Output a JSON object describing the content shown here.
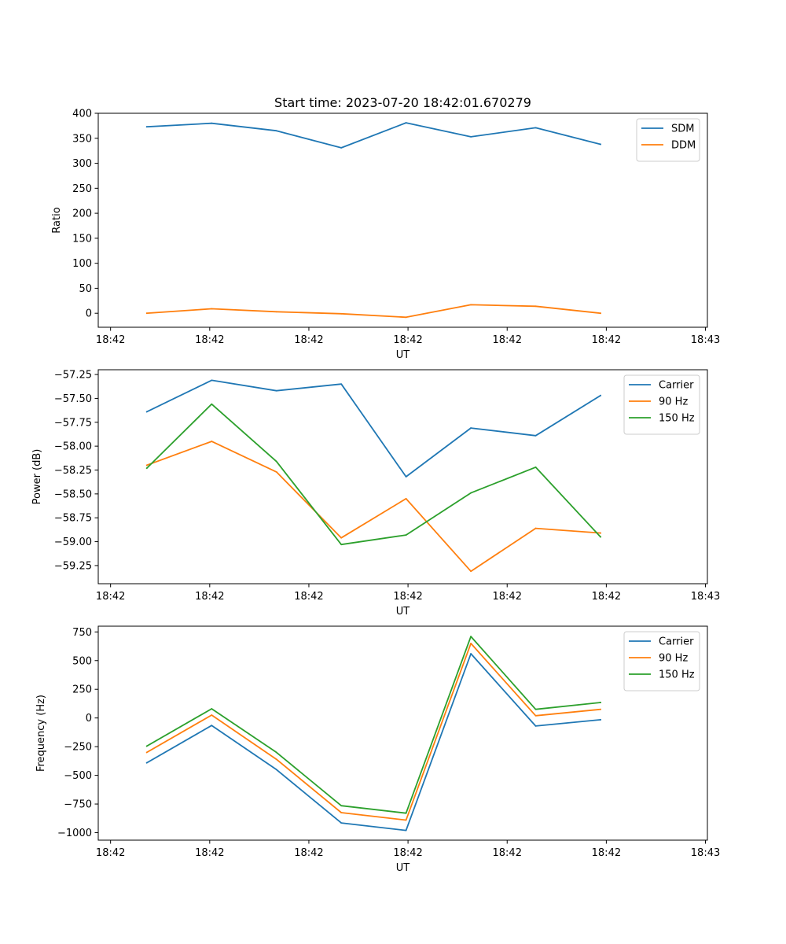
{
  "title": "Start time: 2023-07-20 18:42:01.670279",
  "colors": {
    "blue": "#1f77b4",
    "orange": "#ff7f0e",
    "green": "#2ca02c"
  },
  "chart_data": [
    {
      "type": "line",
      "xlabel": "UT",
      "ylabel": "Ratio",
      "x": [
        1,
        2,
        3,
        4,
        5,
        6,
        7,
        8
      ],
      "xlim": [
        0.25,
        9.65
      ],
      "xticks": [
        0.44,
        1.97,
        3.5,
        5.03,
        6.56,
        8.09,
        9.62
      ],
      "xtick_labels": [
        "18:42",
        "18:42",
        "18:42",
        "18:42",
        "18:42",
        "18:42",
        "18:43"
      ],
      "ylim": [
        -28,
        400
      ],
      "yticks": [
        0,
        50,
        100,
        150,
        200,
        250,
        300,
        350,
        400
      ],
      "ytick_labels": [
        "0",
        "50",
        "100",
        "150",
        "200",
        "250",
        "300",
        "350",
        "400"
      ],
      "legend_position": "top-right",
      "series": [
        {
          "name": "SDM",
          "color": "#1f77b4",
          "values": [
            373,
            380,
            365,
            331,
            381,
            353,
            371,
            338
          ]
        },
        {
          "name": "DDM",
          "color": "#ff7f0e",
          "values": [
            0,
            9,
            3,
            -1,
            -8,
            17,
            14,
            0
          ]
        }
      ]
    },
    {
      "type": "line",
      "xlabel": "UT",
      "ylabel": "Power (dB)",
      "x": [
        1,
        2,
        3,
        4,
        5,
        6,
        7,
        8
      ],
      "xlim": [
        0.25,
        9.65
      ],
      "xticks": [
        0.44,
        1.97,
        3.5,
        5.03,
        6.56,
        8.09,
        9.62
      ],
      "xtick_labels": [
        "18:42",
        "18:42",
        "18:42",
        "18:42",
        "18:42",
        "18:42",
        "18:43"
      ],
      "ylim": [
        -59.44,
        -57.2
      ],
      "yticks": [
        -59.25,
        -59.0,
        -58.75,
        -58.5,
        -58.25,
        -58.0,
        -57.75,
        -57.5,
        -57.25
      ],
      "ytick_labels": [
        "−59.25",
        "−59.00",
        "−58.75",
        "−58.50",
        "−58.25",
        "−58.00",
        "−57.75",
        "−57.50",
        "−57.25"
      ],
      "legend_position": "top-right",
      "series": [
        {
          "name": "Carrier",
          "color": "#1f77b4",
          "values": [
            -57.64,
            -57.31,
            -57.42,
            -57.35,
            -58.32,
            -57.81,
            -57.89,
            -57.47
          ]
        },
        {
          "name": "90 Hz",
          "color": "#ff7f0e",
          "values": [
            -58.2,
            -57.95,
            -58.27,
            -58.96,
            -58.55,
            -59.31,
            -58.86,
            -58.91
          ]
        },
        {
          "name": "150 Hz",
          "color": "#2ca02c",
          "values": [
            -58.23,
            -57.56,
            -58.16,
            -59.03,
            -58.93,
            -58.49,
            -58.22,
            -58.95
          ]
        }
      ]
    },
    {
      "type": "line",
      "xlabel": "UT",
      "ylabel": "Frequency (Hz)",
      "x": [
        1,
        2,
        3,
        4,
        5,
        6,
        7,
        8
      ],
      "xlim": [
        0.25,
        9.65
      ],
      "xticks": [
        0.44,
        1.97,
        3.5,
        5.03,
        6.56,
        8.09,
        9.62
      ],
      "xtick_labels": [
        "18:42",
        "18:42",
        "18:42",
        "18:42",
        "18:42",
        "18:42",
        "18:43"
      ],
      "ylim": [
        -1065,
        800
      ],
      "yticks": [
        -1000,
        -750,
        -500,
        -250,
        0,
        250,
        500,
        750
      ],
      "ytick_labels": [
        "−1000",
        "−750",
        "−500",
        "−250",
        "0",
        "250",
        "500",
        "750"
      ],
      "legend_position": "top-right",
      "series": [
        {
          "name": "Carrier",
          "color": "#1f77b4",
          "values": [
            -390,
            -65,
            -450,
            -915,
            -980,
            560,
            -70,
            -15
          ]
        },
        {
          "name": "90 Hz",
          "color": "#ff7f0e",
          "values": [
            -300,
            25,
            -360,
            -825,
            -890,
            650,
            20,
            75
          ]
        },
        {
          "name": "150 Hz",
          "color": "#2ca02c",
          "values": [
            -245,
            80,
            -300,
            -765,
            -830,
            710,
            75,
            135
          ]
        }
      ]
    }
  ]
}
